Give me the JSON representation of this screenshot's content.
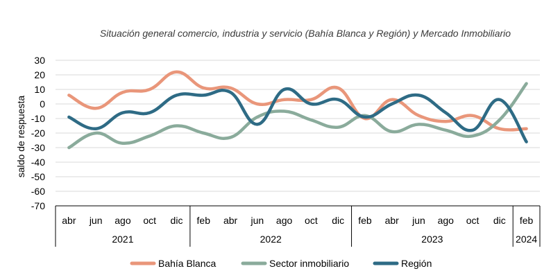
{
  "chart_data": {
    "type": "line",
    "title": "Situación general comercio, industria y servicio (Bahía Blanca y Región) y Mercado Inmobiliario",
    "ylabel": "saldo de respuesta",
    "xlabel": "",
    "ylim": [
      -70,
      30
    ],
    "yticks": [
      "30",
      "20",
      "10",
      "0",
      "-10",
      "-20",
      "-30",
      "-40",
      "-50",
      "-60",
      "-70"
    ],
    "grid": true,
    "legend_position": "bottom",
    "categories": [
      "abr",
      "jun",
      "ago",
      "oct",
      "dic",
      "feb",
      "abr",
      "jun",
      "ago",
      "oct",
      "dic",
      "feb",
      "abr",
      "jun",
      "ago",
      "oct",
      "dic",
      "feb"
    ],
    "years": [
      {
        "label": "2021",
        "span": 5
      },
      {
        "label": "2022",
        "span": 6
      },
      {
        "label": "2023",
        "span": 6
      },
      {
        "label": "2024",
        "span": 1
      }
    ],
    "series": [
      {
        "name": "Bahía Blanca",
        "color": "#e9967a",
        "values": [
          6,
          -3,
          8,
          10,
          22,
          11,
          11,
          0,
          3,
          3,
          11,
          -10,
          3,
          -8,
          -12,
          -8,
          -17,
          -17
        ]
      },
      {
        "name": "Sector inmobiliario",
        "color": "#8aab9b",
        "values": [
          -30,
          -20,
          -27,
          -22,
          -15,
          -20,
          -23,
          -9,
          -5,
          -11,
          -16,
          -8,
          -19,
          -14,
          -18,
          -22,
          -11,
          14
        ]
      },
      {
        "name": "Región",
        "color": "#2e6b85",
        "values": [
          -9,
          -17,
          -6,
          -6,
          6,
          6,
          8,
          -14,
          10,
          0,
          3,
          -9,
          0,
          6,
          -6,
          -18,
          3,
          -26
        ]
      }
    ]
  }
}
